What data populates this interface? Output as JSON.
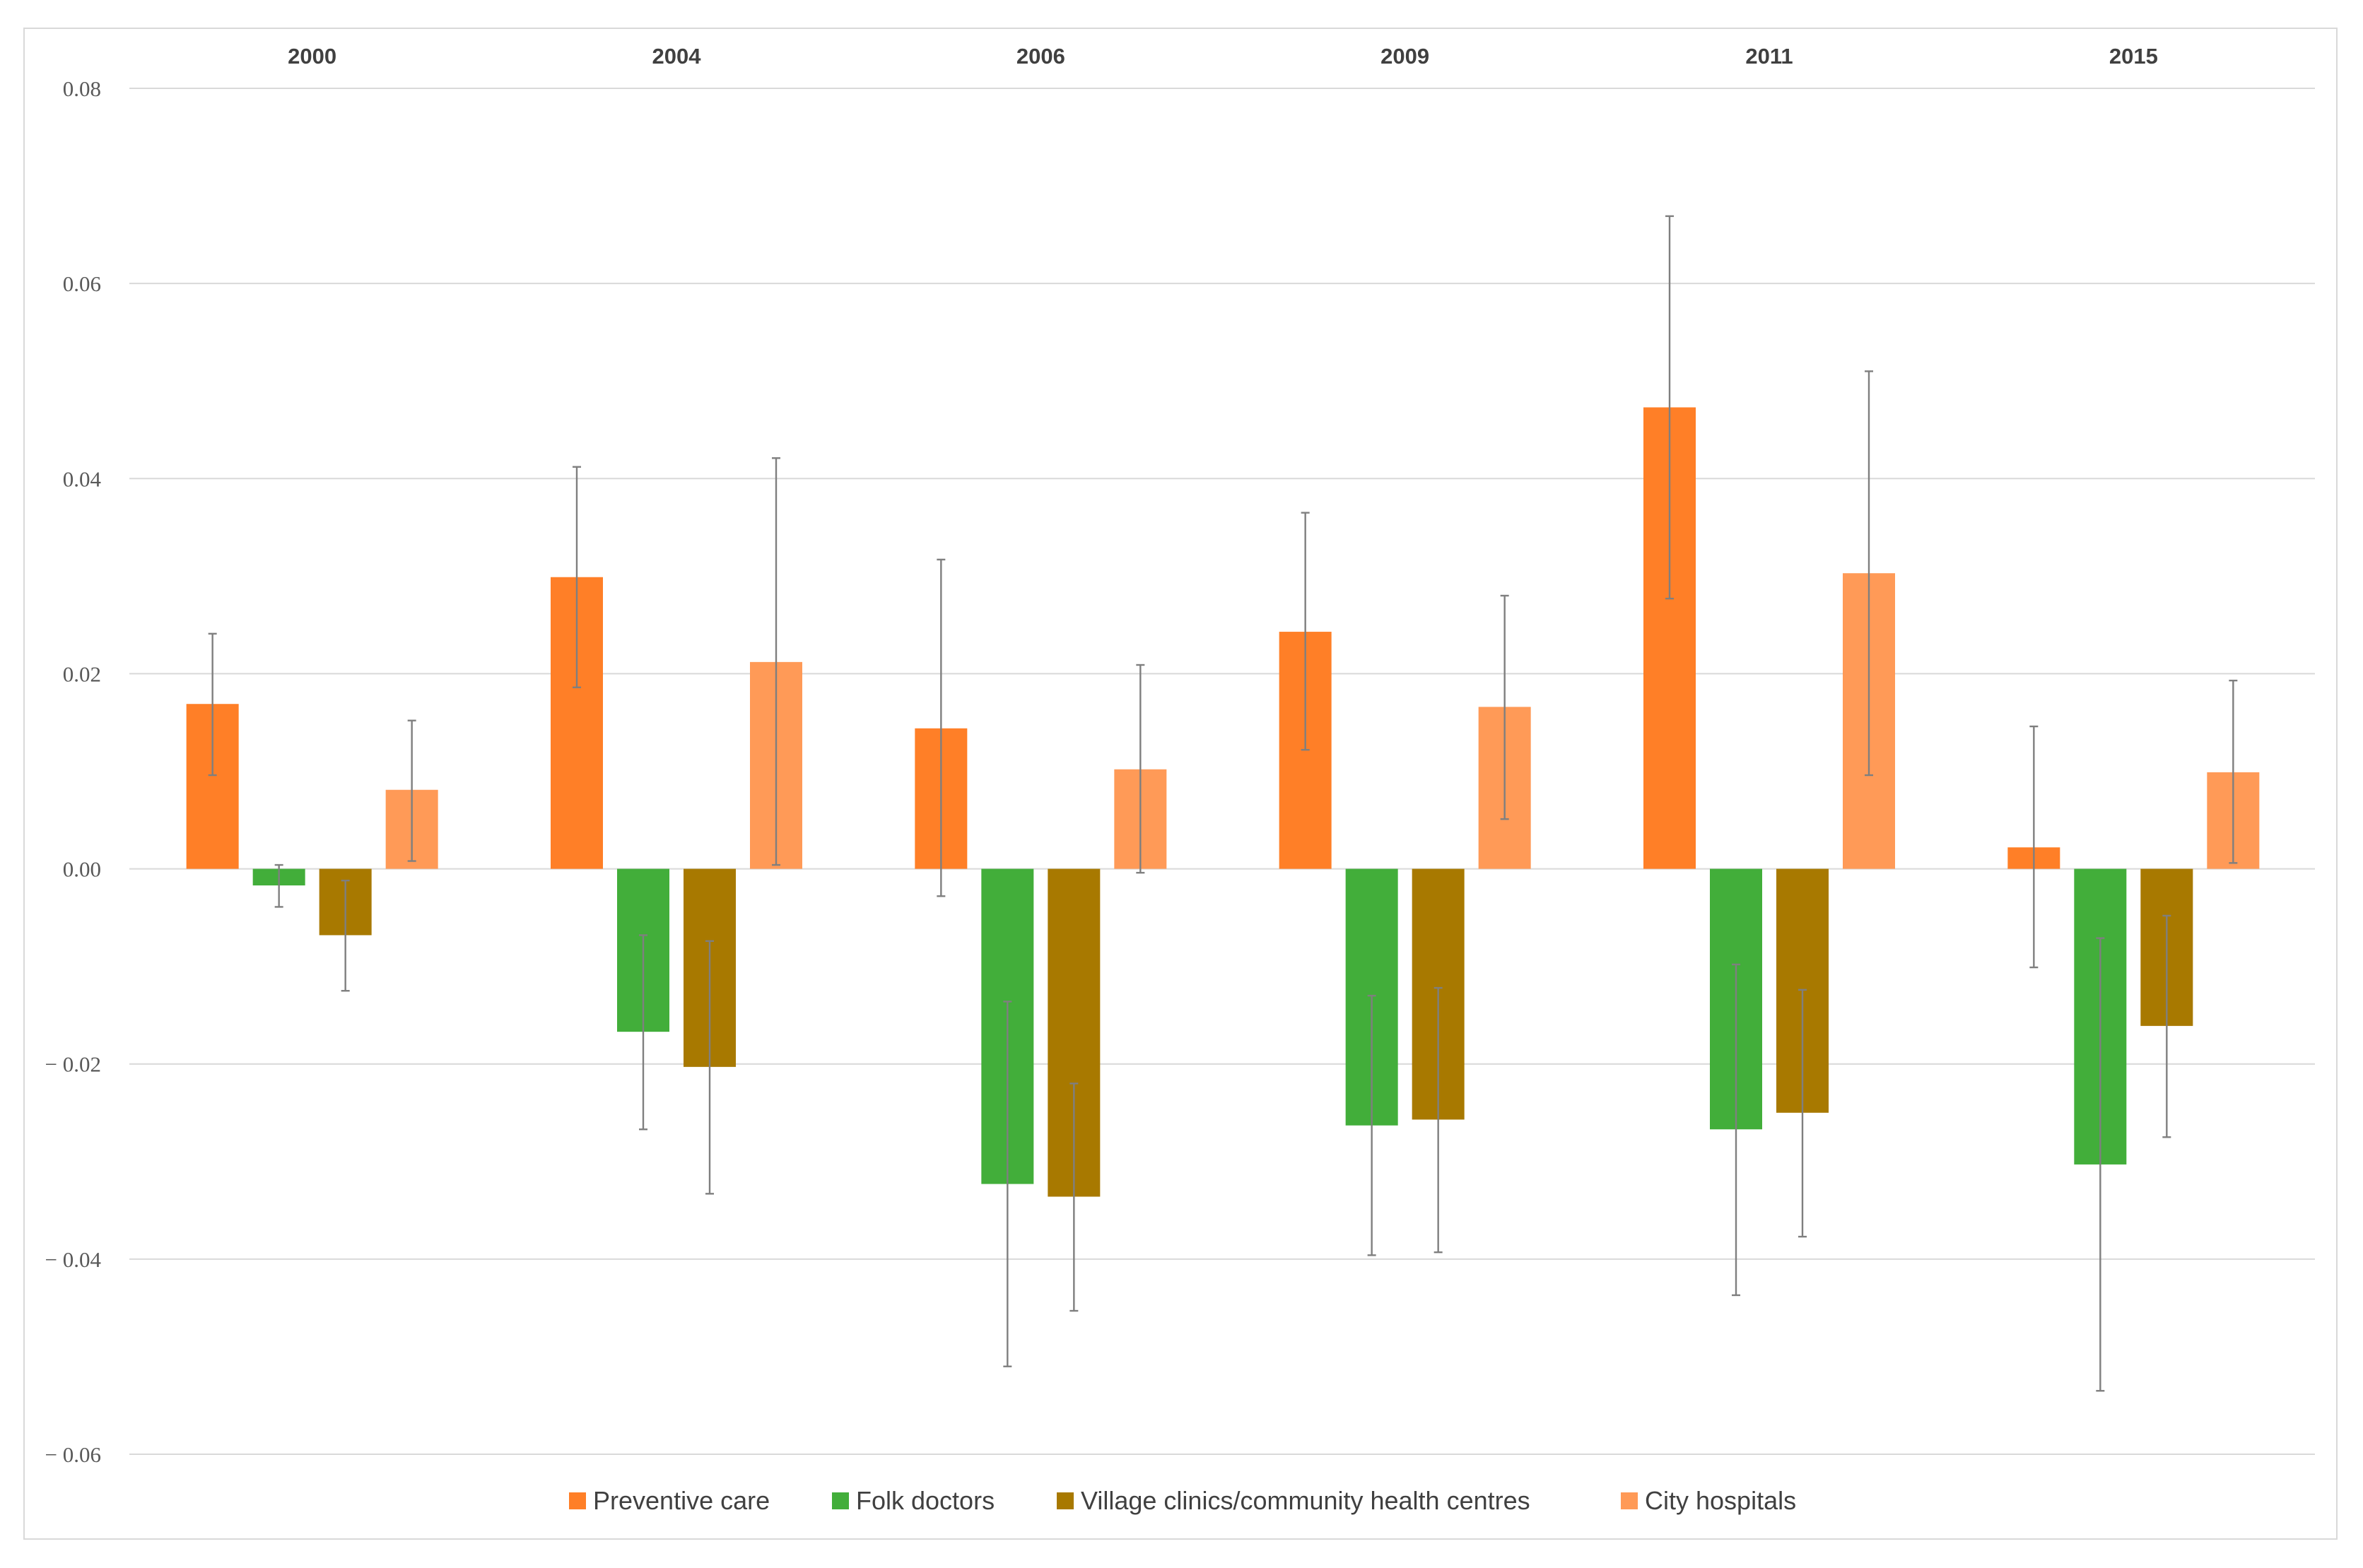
{
  "chart_data": {
    "type": "bar",
    "title": "",
    "xlabel": "",
    "ylabel": "",
    "categories": [
      "2000",
      "2004",
      "2006",
      "2009",
      "2011",
      "2015"
    ],
    "ylim": [
      -0.06,
      0.08
    ],
    "yticks": [
      {
        "value": 0.08,
        "label": "0.08"
      },
      {
        "value": 0.06,
        "label": "0.06"
      },
      {
        "value": 0.04,
        "label": "0.04"
      },
      {
        "value": 0.02,
        "label": "0.02"
      },
      {
        "value": 0.0,
        "label": "0.00"
      },
      {
        "value": -0.02,
        "label": "− 0.02"
      },
      {
        "value": -0.04,
        "label": "− 0.04"
      },
      {
        "value": -0.06,
        "label": "− 0.06"
      }
    ],
    "grid": true,
    "legend_position": "bottom",
    "series": [
      {
        "name": "Preventive care",
        "color": "#FF7F27",
        "values": [
          0.0169,
          0.0299,
          0.0144,
          0.0243,
          0.0473,
          0.0022
        ],
        "error_low": [
          0.0096,
          0.0186,
          -0.0028,
          0.0122,
          0.0277,
          -0.0101
        ],
        "error_high": [
          0.0241,
          0.0412,
          0.0317,
          0.0365,
          0.0669,
          0.0146
        ]
      },
      {
        "name": "Folk doctors",
        "color": "#42AE3A",
        "values": [
          -0.0017,
          -0.0167,
          -0.0323,
          -0.0263,
          -0.0267,
          -0.0303
        ],
        "error_low": [
          -0.0039,
          -0.0267,
          -0.051,
          -0.0396,
          -0.0437,
          -0.0535
        ],
        "error_high": [
          0.0004,
          -0.0068,
          -0.0136,
          -0.013,
          -0.0098,
          -0.0071
        ]
      },
      {
        "name": "Village clinics/community health centres",
        "color": "#A87900",
        "values": [
          -0.0068,
          -0.0203,
          -0.0336,
          -0.0257,
          -0.025,
          -0.0161
        ],
        "error_low": [
          -0.0125,
          -0.0333,
          -0.0453,
          -0.0393,
          -0.0377,
          -0.0275
        ],
        "error_high": [
          -0.0012,
          -0.0074,
          -0.022,
          -0.0122,
          -0.0124,
          -0.0048
        ]
      },
      {
        "name": "City hospitals",
        "color": "#FF9A57",
        "values": [
          0.0081,
          0.0212,
          0.0102,
          0.0166,
          0.0303,
          0.0099
        ],
        "error_low": [
          0.0008,
          0.0004,
          -0.0004,
          0.0051,
          0.0096,
          0.0006
        ],
        "error_high": [
          0.0152,
          0.0421,
          0.0209,
          0.028,
          0.051,
          0.0193
        ]
      }
    ]
  }
}
